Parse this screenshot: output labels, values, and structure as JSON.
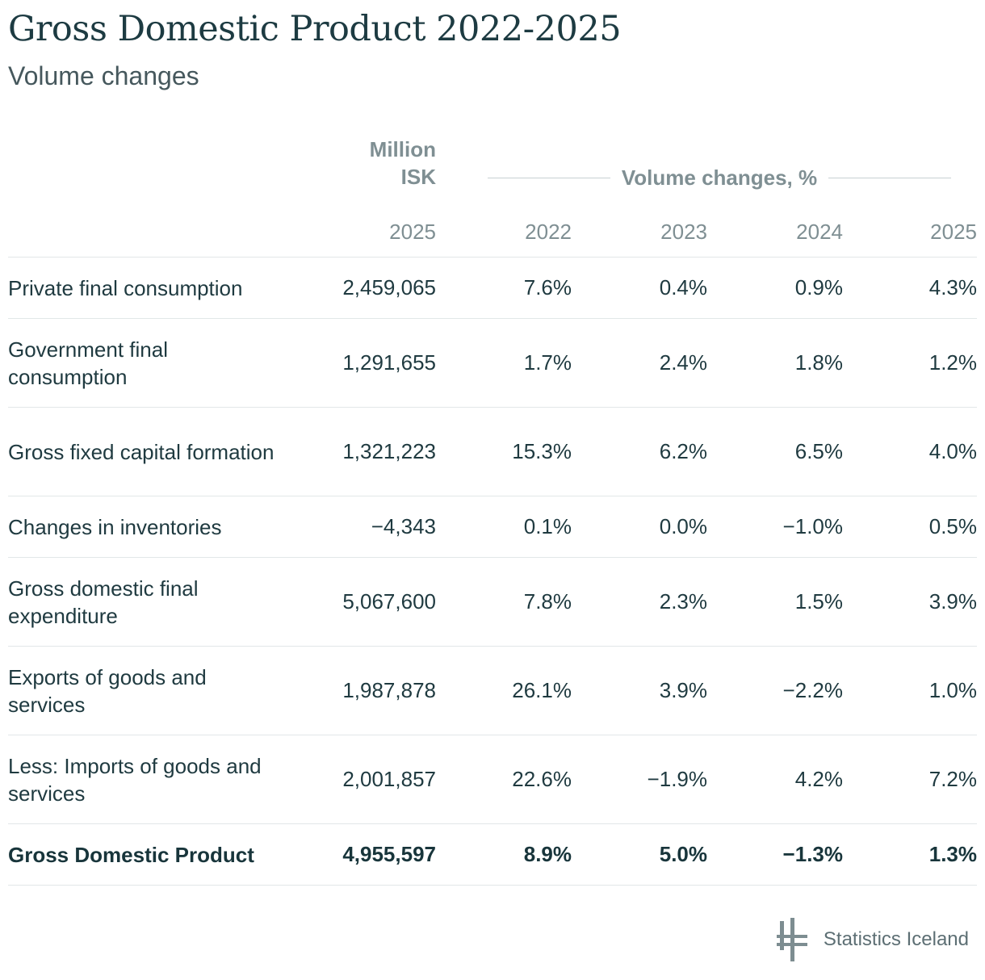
{
  "header": {
    "title": "Gross Domestic Product 2022-2025",
    "subtitle": "Volume changes"
  },
  "columns": {
    "unit_line1": "Million",
    "unit_line2": "ISK",
    "group_label": "Volume changes, %",
    "years": [
      "2025",
      "2022",
      "2023",
      "2024",
      "2025"
    ]
  },
  "chart_data": {
    "type": "table",
    "title": "Gross Domestic Product 2022-2025",
    "subtitle": "Volume changes",
    "column_headers": [
      "Million ISK 2025",
      "2022",
      "2023",
      "2024",
      "2025"
    ],
    "column_group": "Volume changes, %",
    "rows": [
      {
        "label": "Private final consumption",
        "values": [
          "2,459,065",
          "7.6%",
          "0.4%",
          "0.9%",
          "4.3%"
        ],
        "bold": false
      },
      {
        "label": "Government final consumption",
        "values": [
          "1,291,655",
          "1.7%",
          "2.4%",
          "1.8%",
          "1.2%"
        ],
        "bold": false
      },
      {
        "label": "Gross fixed capital formation",
        "values": [
          "1,321,223",
          "15.3%",
          "6.2%",
          "6.5%",
          "4.0%"
        ],
        "bold": false
      },
      {
        "label": "Changes in inventories",
        "values": [
          "−4,343",
          "0.1%",
          "0.0%",
          "−1.0%",
          "0.5%"
        ],
        "bold": false
      },
      {
        "label": "Gross domestic final expenditure",
        "values": [
          "5,067,600",
          "7.8%",
          "2.3%",
          "1.5%",
          "3.9%"
        ],
        "bold": false
      },
      {
        "label": "Exports of goods and services",
        "values": [
          "1,987,878",
          "26.1%",
          "3.9%",
          "−2.2%",
          "1.0%"
        ],
        "bold": false
      },
      {
        "label": "Less: Imports of goods and services",
        "values": [
          "2,001,857",
          "22.6%",
          "−1.9%",
          "4.2%",
          "7.2%"
        ],
        "bold": false
      },
      {
        "label": "Gross Domestic Product",
        "values": [
          "4,955,597",
          "8.9%",
          "5.0%",
          "−1.3%",
          "1.3%"
        ],
        "bold": true
      }
    ]
  },
  "footer": {
    "logo_icon": "statistics-iceland-logo-icon",
    "source": "Statistics Iceland"
  },
  "colors": {
    "text": "#1f3a40",
    "muted": "#7f8f93",
    "rule": "#e2e7e8"
  }
}
